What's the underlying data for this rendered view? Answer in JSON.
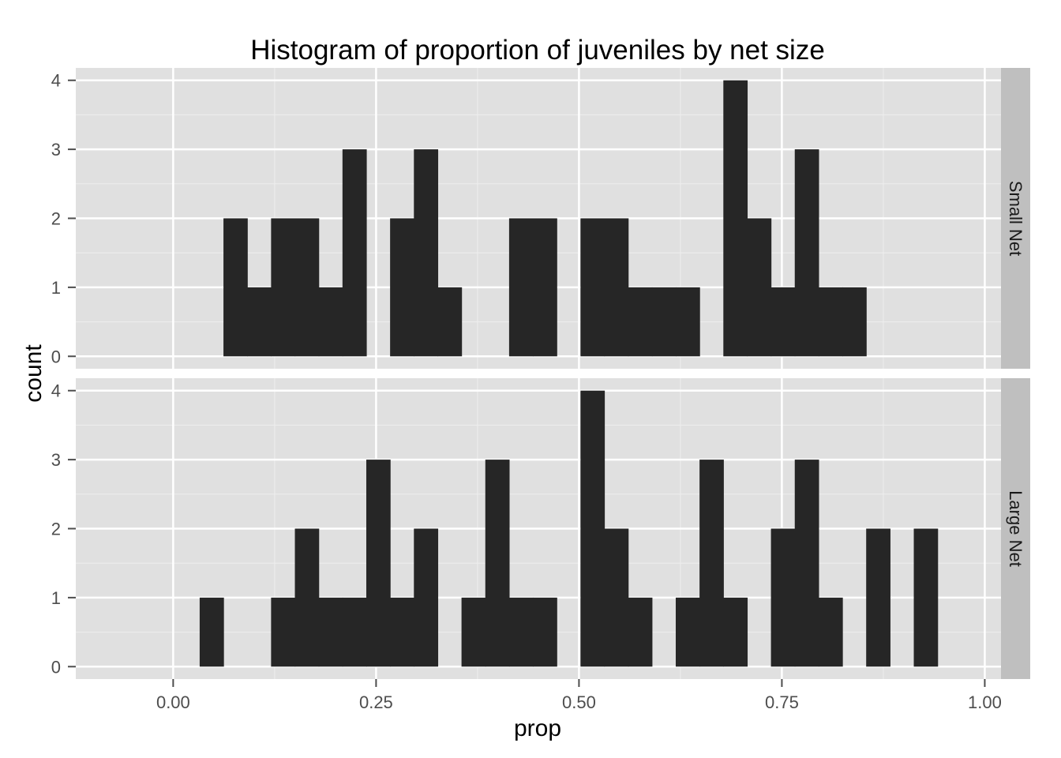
{
  "chart_data": {
    "type": "bar",
    "subtype": "faceted-histogram",
    "title": "Histogram of proportion of juveniles by net size",
    "xlabel": "prop",
    "ylabel": "count",
    "xlim": [
      -0.12,
      1.02
    ],
    "ylim": [
      -0.18,
      4.18
    ],
    "xticks": [
      0,
      0.25,
      0.5,
      0.75,
      1
    ],
    "xtick_labels": [
      "0.00",
      "0.25",
      "0.50",
      "0.75",
      "1.00"
    ],
    "yticks": [
      0,
      1,
      2,
      3,
      4
    ],
    "ytick_labels": [
      "0",
      "1",
      "2",
      "3",
      "4"
    ],
    "bin_width": 0.02933,
    "bin_start": 0.0033,
    "grid": true,
    "bar_color": "#262626",
    "panel_background": "#e0e0e0",
    "strip_background": "#bfbfbf",
    "facets": [
      {
        "name": "Small Net",
        "counts": [
          0,
          0,
          2,
          1,
          2,
          2,
          1,
          3,
          0,
          2,
          3,
          1,
          0,
          0,
          2,
          2,
          0,
          2,
          2,
          1,
          1,
          1,
          0,
          4,
          2,
          1,
          3,
          1,
          1,
          0,
          0,
          0,
          0,
          0
        ]
      },
      {
        "name": "Large Net",
        "counts": [
          0,
          1,
          0,
          0,
          1,
          2,
          1,
          1,
          3,
          1,
          2,
          0,
          1,
          3,
          1,
          1,
          0,
          4,
          2,
          1,
          0,
          1,
          3,
          1,
          0,
          2,
          3,
          1,
          0,
          2,
          0,
          2,
          0,
          0
        ]
      }
    ]
  }
}
